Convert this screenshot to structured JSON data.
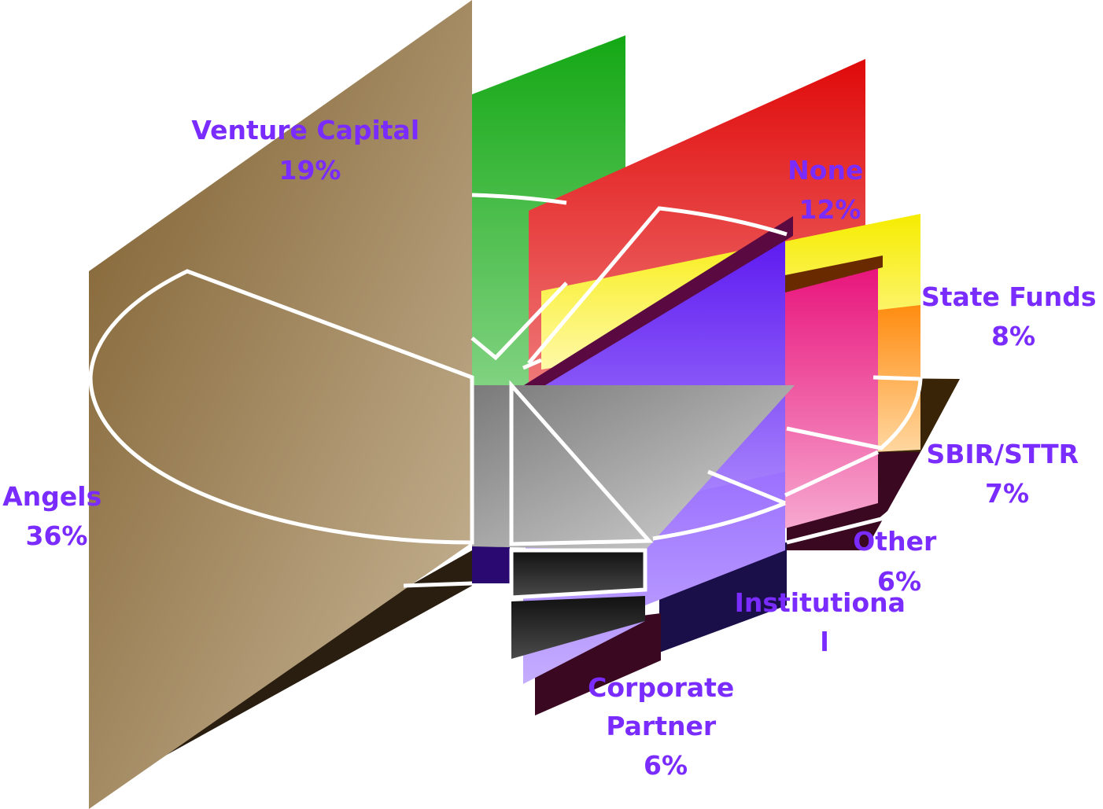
{
  "chart_data": {
    "type": "pie",
    "title": "",
    "legend": "none",
    "slices": [
      {
        "label": "Angels",
        "pct_label": "36%",
        "value": 36,
        "color": "#a88c62"
      },
      {
        "label": "Venture Capital",
        "pct_label": "19%",
        "value": 19,
        "color": "#2db52d"
      },
      {
        "label": "None",
        "pct_label": "12%",
        "value": 12,
        "color": "#e01818"
      },
      {
        "label": "State Funds",
        "pct_label": "8%",
        "value": 8,
        "color": "#f5e81a"
      },
      {
        "label": "SBIR/STTR",
        "pct_label": "7%",
        "value": 7,
        "color": "#ff9a2a"
      },
      {
        "label": "Other",
        "pct_label": "6%",
        "value": 6,
        "color": "#e81e86"
      },
      {
        "label": "Institutiona\nl",
        "pct_label": "",
        "value": null,
        "color": "#5b1ee8"
      },
      {
        "label": "Corporate Partner",
        "pct_label": "6%",
        "value": 6,
        "color": "#9f7aff"
      }
    ],
    "extra_wedge_color": "#8c8c8c",
    "label_color": "#7a2cff"
  }
}
